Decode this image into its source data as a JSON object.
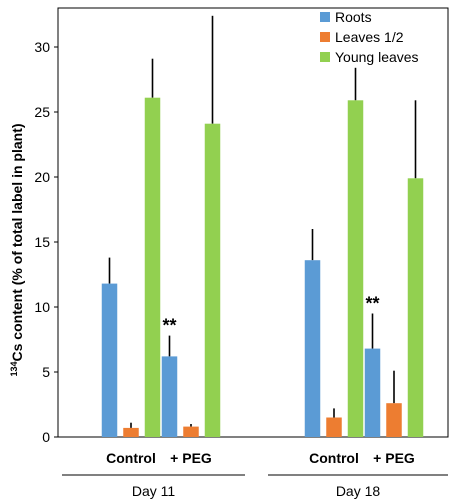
{
  "chart_data": {
    "type": "bar",
    "ylabel_sup": "134",
    "ylabel": "Cs content (% of total label in plant)",
    "ylim": [
      0,
      33
    ],
    "yticks": [
      0,
      5,
      10,
      15,
      20,
      25,
      30
    ],
    "categories": [
      "Control",
      "+ PEG",
      "Control",
      "+ PEG"
    ],
    "groups": [
      {
        "label": "Day 11",
        "categories": [
          0,
          1
        ]
      },
      {
        "label": "Day 18",
        "categories": [
          2,
          3
        ]
      }
    ],
    "legend": "top-right",
    "series": [
      {
        "name": "Roots",
        "color": "#5B9BD5",
        "values": [
          11.8,
          6.2,
          13.6,
          6.8
        ],
        "errors": [
          2.0,
          1.6,
          2.4,
          2.7
        ]
      },
      {
        "name": "Leaves 1/2",
        "color": "#ED7D31",
        "values": [
          0.7,
          0.8,
          1.5,
          2.6
        ],
        "errors": [
          0.4,
          0.2,
          0.7,
          2.5
        ]
      },
      {
        "name": "Young leaves",
        "color": "#92D050",
        "values": [
          26.1,
          24.1,
          25.9,
          19.9
        ],
        "errors": [
          3.0,
          8.3,
          2.5,
          6.0
        ]
      }
    ],
    "annotations": [
      {
        "text": "**",
        "category": 1,
        "series": 0
      },
      {
        "text": "**",
        "category": 3,
        "series": 0
      }
    ]
  }
}
